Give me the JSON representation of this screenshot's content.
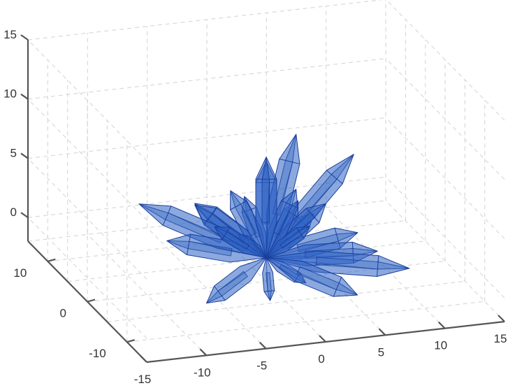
{
  "chart_data": {
    "type": "3d-crystal-spray",
    "title": "",
    "grid": true,
    "fill_color": "#2e63c4",
    "edge_color": "#1a3f9c",
    "axes": {
      "x": {
        "ticks": [
          "-15",
          "-10",
          "-5",
          "0",
          "5",
          "10",
          "15"
        ],
        "values": [
          -15,
          -10,
          -5,
          0,
          5,
          10,
          15
        ],
        "range": [
          -15,
          15
        ]
      },
      "y": {
        "ticks": [
          "-10",
          "0",
          "10"
        ],
        "values": [
          -10,
          0,
          10
        ],
        "range": [
          -15,
          15
        ]
      },
      "z": {
        "ticks": [
          "0",
          "5",
          "10",
          "15"
        ],
        "values": [
          0,
          5,
          10,
          15
        ],
        "range": [
          -2,
          15
        ]
      }
    },
    "origin": [
      0,
      0,
      0
    ],
    "crystals": [
      {
        "x": 0,
        "y": 0,
        "z": 8.5
      },
      {
        "x": 3.5,
        "y": 3,
        "z": 9
      },
      {
        "x": 9,
        "y": 5,
        "z": 6
      },
      {
        "x": -10,
        "y": 2,
        "z": 5
      },
      {
        "x": -6,
        "y": -5,
        "z": 5
      },
      {
        "x": -3,
        "y": 0,
        "z": 6
      },
      {
        "x": -1.5,
        "y": 1,
        "z": 5
      },
      {
        "x": 2.5,
        "y": 0,
        "z": 5.5
      },
      {
        "x": 5,
        "y": 0,
        "z": 4
      },
      {
        "x": 7,
        "y": -2,
        "z": 2
      },
      {
        "x": 8,
        "y": -4,
        "z": 1
      },
      {
        "x": 10,
        "y": -6,
        "z": 0
      },
      {
        "x": 5,
        "y": -8,
        "z": -1
      },
      {
        "x": -2,
        "y": -7,
        "z": -1
      },
      {
        "x": 2,
        "y": -4,
        "z": -1
      },
      {
        "x": -7,
        "y": -6,
        "z": -1
      },
      {
        "x": -8,
        "y": 1,
        "z": 2
      },
      {
        "x": -5,
        "y": 3,
        "z": 4
      },
      {
        "x": 4,
        "y": 4,
        "z": 3
      },
      {
        "x": 6,
        "y": 6,
        "z": 1
      },
      {
        "x": -4,
        "y": 6,
        "z": 3
      },
      {
        "x": 1,
        "y": 3,
        "z": 7
      },
      {
        "x": -3,
        "y": -2,
        "z": 3
      },
      {
        "x": 3,
        "y": -2,
        "z": 3
      }
    ]
  }
}
